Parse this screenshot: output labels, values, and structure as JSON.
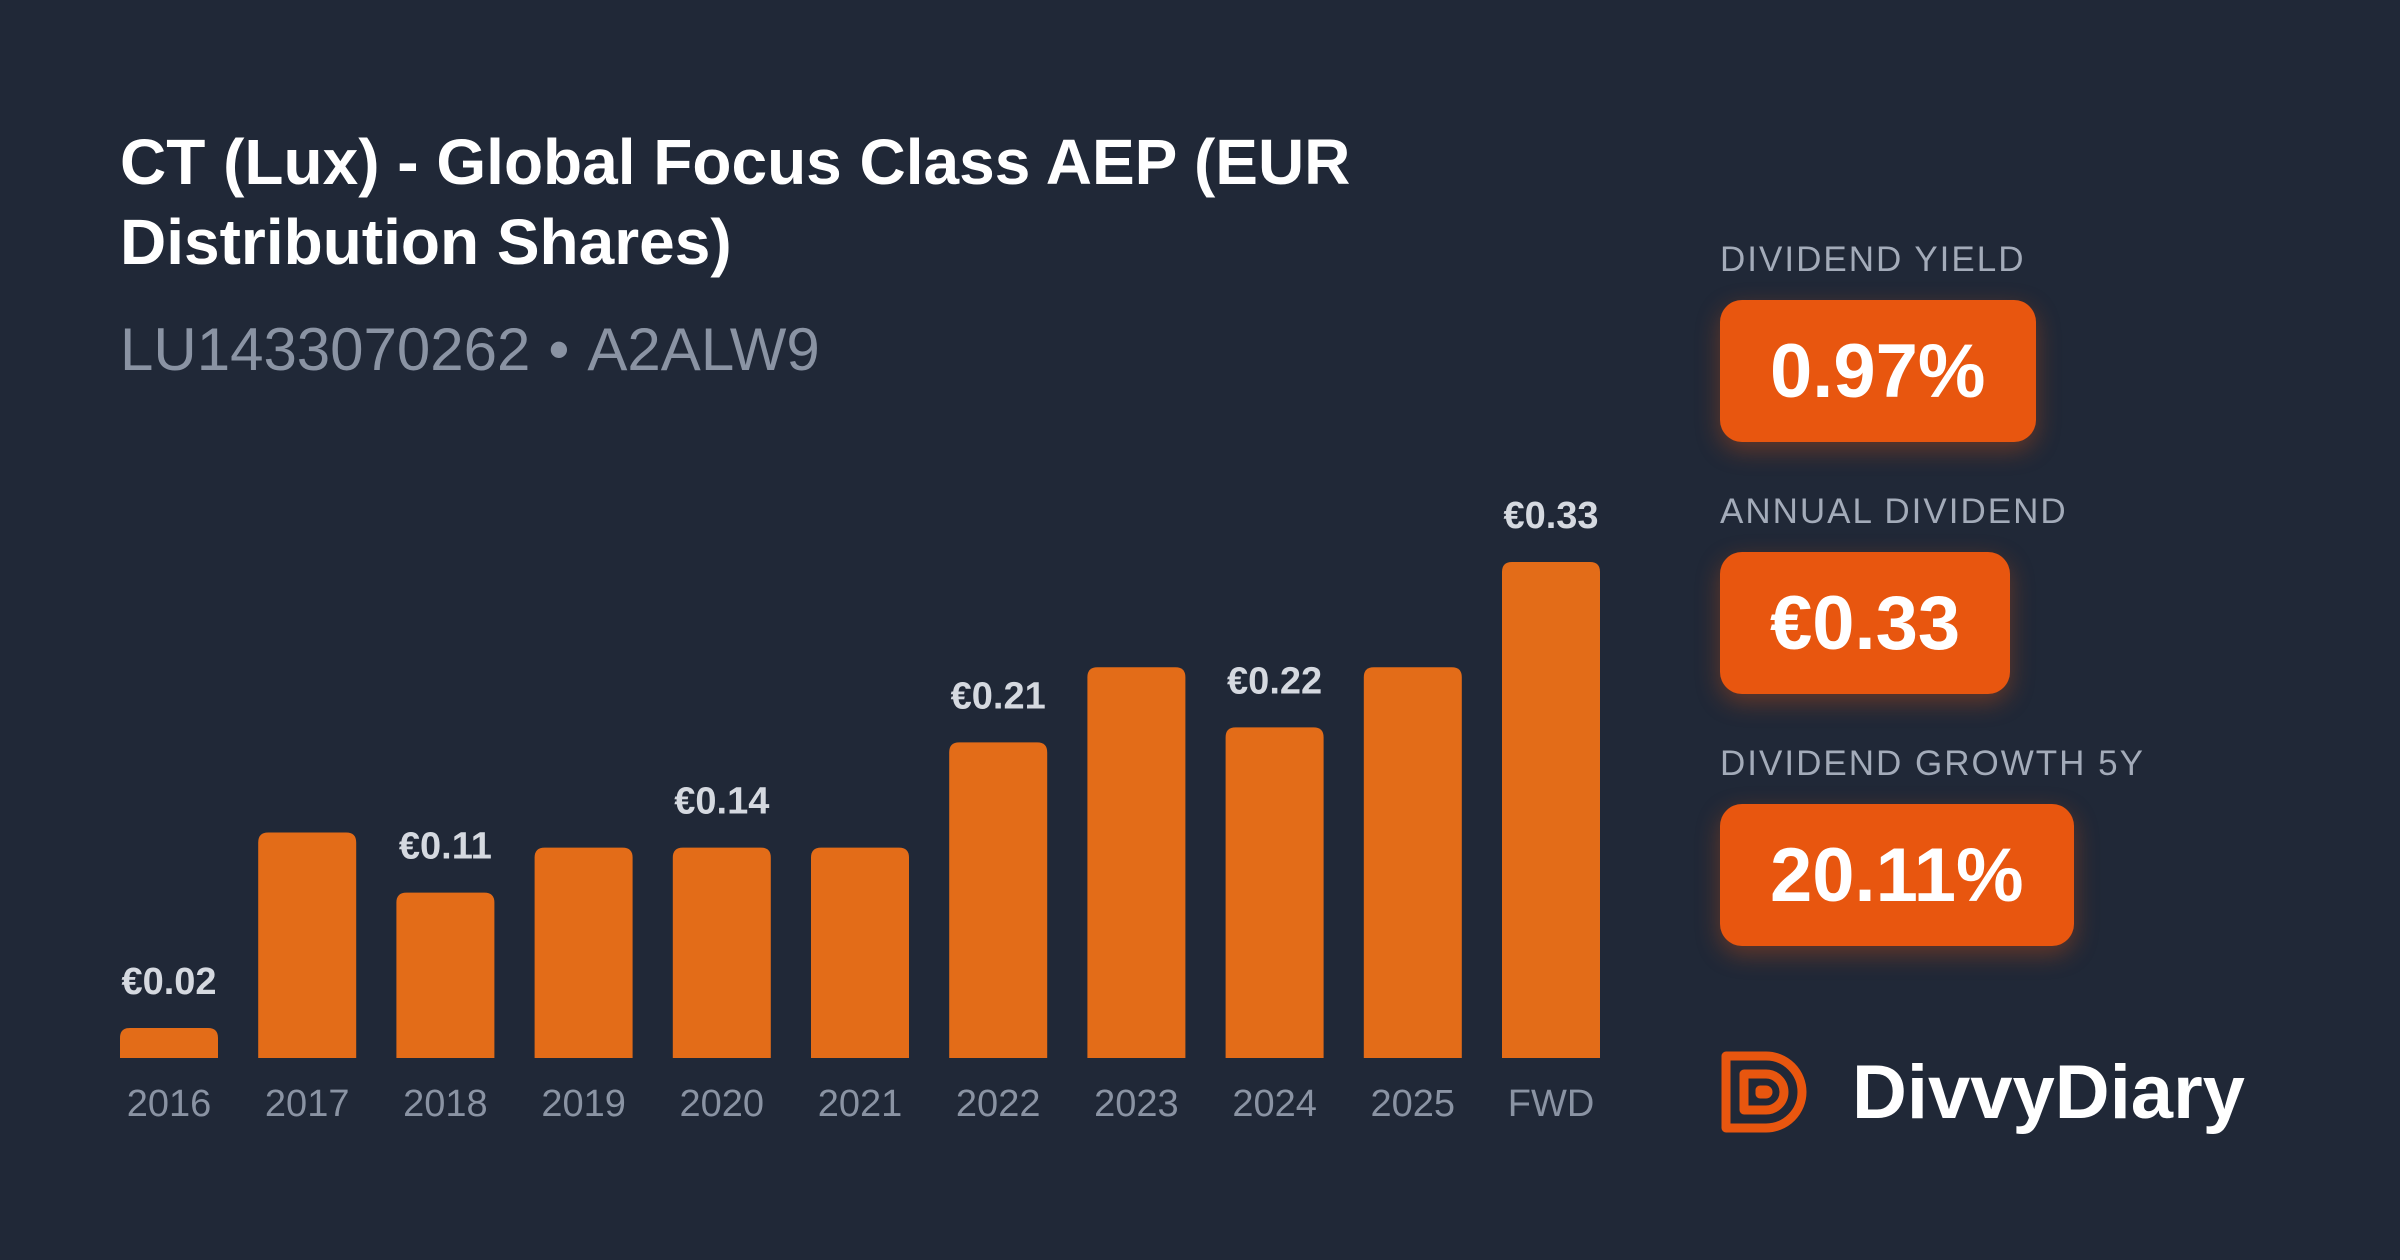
{
  "header": {
    "title": "CT (Lux) - Global Focus Class AEP (EUR Distribution Shares)",
    "isin": "LU1433070262",
    "separator": "•",
    "wkn": "A2ALW9"
  },
  "stats": [
    {
      "label": "DIVIDEND YIELD",
      "value": "0.97%"
    },
    {
      "label": "ANNUAL DIVIDEND",
      "value": "€0.33"
    },
    {
      "label": "DIVIDEND GROWTH 5Y",
      "value": "20.11%"
    }
  ],
  "brand": {
    "name": "DivvyDiary",
    "logo_icon": "divvydiary-logo-icon"
  },
  "colors": {
    "background": "#202837",
    "bar": "#e36c18",
    "accent": "#e8560f",
    "muted_text": "#8a93a3",
    "value_label": "#d5d9e0"
  },
  "chart_data": {
    "type": "bar",
    "categories": [
      "2016",
      "2017",
      "2018",
      "2019",
      "2020",
      "2021",
      "2022",
      "2023",
      "2024",
      "2025",
      "FWD"
    ],
    "values": [
      0.02,
      0.15,
      0.11,
      0.14,
      0.14,
      0.14,
      0.21,
      0.26,
      0.22,
      0.26,
      0.33
    ],
    "value_labels": [
      "€0.02",
      "",
      "€0.11",
      "",
      "€0.14",
      "",
      "€0.21",
      "",
      "€0.22",
      "",
      "€0.33"
    ],
    "ylim": [
      0,
      0.33
    ],
    "grid": false,
    "legend": "none"
  }
}
